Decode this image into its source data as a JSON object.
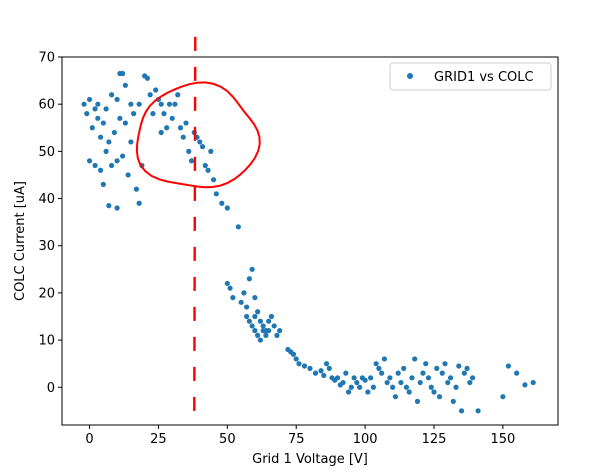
{
  "chart_data": {
    "type": "scatter",
    "xlabel": "Grid 1 Voltage [V]",
    "ylabel": "COLC Current [uA]",
    "xlim": [
      -10,
      170
    ],
    "ylim": [
      -8,
      70
    ],
    "xticks": [
      0,
      25,
      50,
      75,
      100,
      125,
      150
    ],
    "yticks": [
      0,
      10,
      20,
      30,
      40,
      50,
      60,
      70
    ],
    "grid": false,
    "legend_position": "top-right",
    "series": [
      {
        "name": "GRID1 vs  COLC",
        "color": "#1f77b4",
        "marker": "circle",
        "points": [
          [
            -2,
            60
          ],
          [
            -1,
            58
          ],
          [
            0,
            61
          ],
          [
            1,
            55
          ],
          [
            2,
            59
          ],
          [
            3,
            57
          ],
          [
            4,
            53
          ],
          [
            5,
            56
          ],
          [
            6,
            50
          ],
          [
            7,
            52
          ],
          [
            0,
            48
          ],
          [
            2,
            47
          ],
          [
            4,
            46
          ],
          [
            5,
            43
          ],
          [
            7,
            38.5
          ],
          [
            10,
            38
          ],
          [
            8,
            47
          ],
          [
            10,
            48
          ],
          [
            12,
            49
          ],
          [
            14,
            45
          ],
          [
            3,
            60
          ],
          [
            6,
            59
          ],
          [
            8,
            62
          ],
          [
            10,
            61
          ],
          [
            11,
            66.5
          ],
          [
            12,
            66.5
          ],
          [
            13,
            64
          ],
          [
            15,
            60
          ],
          [
            16,
            58
          ],
          [
            18,
            60
          ],
          [
            20,
            66
          ],
          [
            21,
            65.5
          ],
          [
            22,
            62
          ],
          [
            24,
            63
          ],
          [
            25,
            61
          ],
          [
            26,
            60
          ],
          [
            27,
            58
          ],
          [
            28,
            55
          ],
          [
            30,
            57
          ],
          [
            31,
            60
          ],
          [
            32,
            62
          ],
          [
            33,
            55
          ],
          [
            34,
            53
          ],
          [
            35,
            56
          ],
          [
            36,
            50
          ],
          [
            37,
            48
          ],
          [
            38,
            54
          ],
          [
            39,
            53
          ],
          [
            40,
            52
          ],
          [
            41,
            51
          ],
          [
            42,
            47
          ],
          [
            43,
            46
          ],
          [
            44,
            50
          ],
          [
            45,
            44
          ],
          [
            46,
            41
          ],
          [
            48,
            39
          ],
          [
            50,
            38
          ],
          [
            54,
            34
          ],
          [
            17,
            42
          ],
          [
            18,
            39
          ],
          [
            19,
            47
          ],
          [
            15,
            52
          ],
          [
            9,
            54
          ],
          [
            11,
            57
          ],
          [
            13,
            56
          ],
          [
            23,
            58
          ],
          [
            29,
            60
          ],
          [
            26,
            54
          ],
          [
            50,
            22
          ],
          [
            51,
            21
          ],
          [
            52,
            19
          ],
          [
            55,
            18
          ],
          [
            56,
            20
          ],
          [
            57,
            17
          ],
          [
            58,
            23
          ],
          [
            59,
            25
          ],
          [
            60,
            19
          ],
          [
            61,
            16
          ],
          [
            62,
            14
          ],
          [
            63,
            13
          ],
          [
            64,
            12
          ],
          [
            65,
            12
          ],
          [
            66,
            15
          ],
          [
            67,
            13
          ],
          [
            68,
            11
          ],
          [
            69,
            12
          ],
          [
            58,
            14
          ],
          [
            59,
            13
          ],
          [
            60,
            12
          ],
          [
            61,
            11
          ],
          [
            62,
            10
          ],
          [
            63,
            12
          ],
          [
            64,
            11
          ],
          [
            57,
            15
          ],
          [
            60,
            15
          ],
          [
            65,
            14
          ],
          [
            72,
            8
          ],
          [
            73,
            7.5
          ],
          [
            74,
            7
          ],
          [
            75,
            6
          ],
          [
            76,
            5
          ],
          [
            78,
            4.5
          ],
          [
            80,
            4
          ],
          [
            82,
            3
          ],
          [
            84,
            3.5
          ],
          [
            85,
            2.5
          ],
          [
            86,
            5
          ],
          [
            87,
            4
          ],
          [
            88,
            2
          ],
          [
            89,
            1.5
          ],
          [
            90,
            2
          ],
          [
            91,
            0.5
          ],
          [
            92,
            1
          ],
          [
            93,
            3
          ],
          [
            94,
            -1
          ],
          [
            95,
            0
          ],
          [
            96,
            2
          ],
          [
            97,
            1
          ],
          [
            98,
            0
          ],
          [
            99,
            2
          ],
          [
            100,
            1.5
          ],
          [
            101,
            -1
          ],
          [
            102,
            2
          ],
          [
            103,
            0
          ],
          [
            104,
            5
          ],
          [
            105,
            4
          ],
          [
            106,
            3
          ],
          [
            107,
            6
          ],
          [
            108,
            1
          ],
          [
            109,
            2
          ],
          [
            110,
            0
          ],
          [
            111,
            -2
          ],
          [
            112,
            3
          ],
          [
            113,
            1
          ],
          [
            114,
            4
          ],
          [
            115,
            0
          ],
          [
            116,
            -1
          ],
          [
            117,
            2
          ],
          [
            118,
            6
          ],
          [
            119,
            -3
          ],
          [
            120,
            1
          ],
          [
            121,
            3
          ],
          [
            122,
            5
          ],
          [
            123,
            2
          ],
          [
            124,
            0
          ],
          [
            125,
            -1
          ],
          [
            126,
            4
          ],
          [
            127,
            -2
          ],
          [
            128,
            3
          ],
          [
            129,
            5
          ],
          [
            130,
            1
          ],
          [
            131,
            2
          ],
          [
            132,
            -3
          ],
          [
            133,
            0
          ],
          [
            134,
            4.5
          ],
          [
            135,
            -5
          ],
          [
            136,
            3
          ],
          [
            137,
            4
          ],
          [
            138,
            1
          ],
          [
            139,
            2
          ],
          [
            141,
            -5
          ],
          [
            150,
            -2
          ],
          [
            152,
            4.5
          ],
          [
            155,
            3
          ],
          [
            158,
            0.5
          ],
          [
            161,
            1
          ]
        ]
      }
    ],
    "annotations": [
      {
        "type": "dashed-vertical-line",
        "color": "#ff0000",
        "x": 38,
        "y_range": [
          -5,
          75
        ]
      },
      {
        "type": "freehand-circle",
        "color": "#ff0000",
        "cx": 39,
        "cy": 53,
        "rx": 22,
        "ry": 11
      }
    ]
  }
}
